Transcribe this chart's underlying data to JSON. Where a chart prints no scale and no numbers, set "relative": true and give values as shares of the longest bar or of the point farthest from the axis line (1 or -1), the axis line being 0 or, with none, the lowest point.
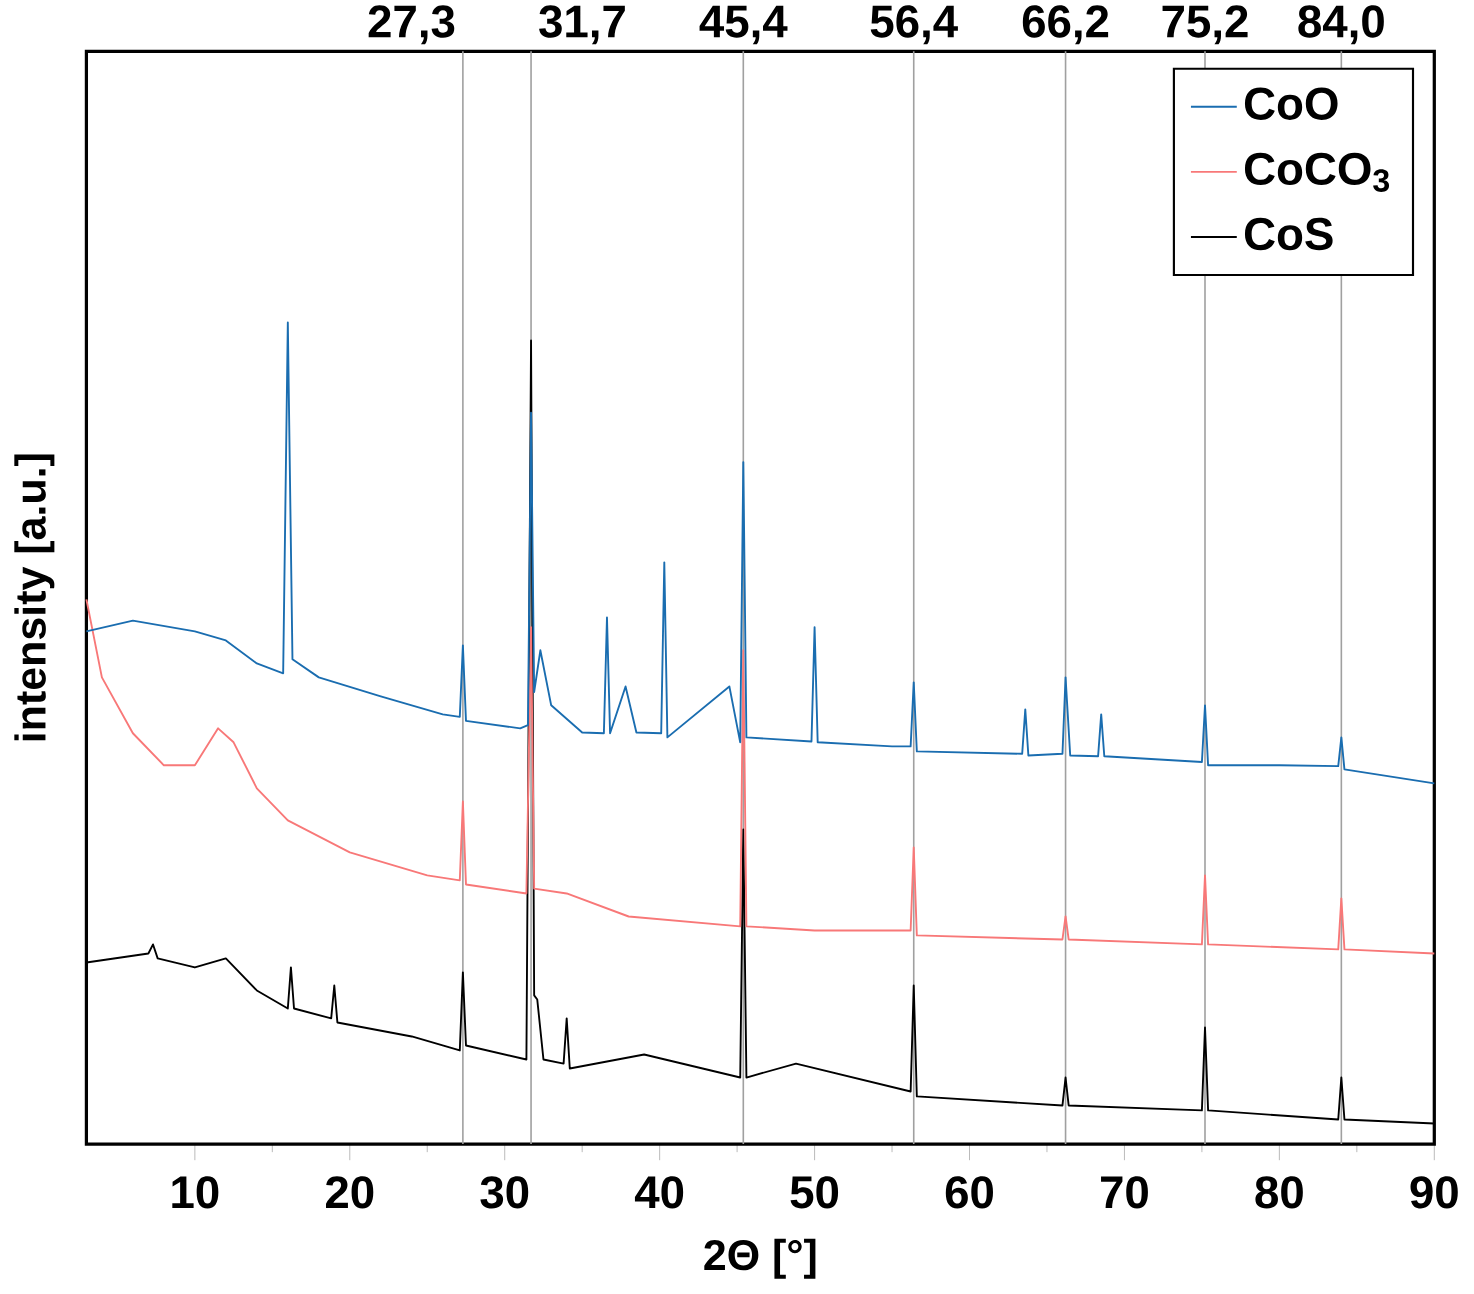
{
  "chart_data": {
    "type": "line",
    "relative": true,
    "xlabel": "2Θ [°]",
    "ylabel": "intensity [a.u.]",
    "xlim": [
      3,
      90
    ],
    "xticks": [
      10,
      20,
      30,
      40,
      50,
      60,
      70,
      80,
      90
    ],
    "legend": "top right",
    "series": [
      {
        "name": "CoO",
        "color": "#1a6db0",
        "x": [
          3,
          6,
          10,
          12,
          14,
          15.7,
          16,
          16.3,
          18,
          22,
          26,
          27.1,
          27.3,
          27.5,
          31,
          31.5,
          31.7,
          31.9,
          32.3,
          33,
          35,
          36.4,
          36.6,
          36.8,
          37.8,
          38.5,
          40.1,
          40.3,
          40.5,
          44.5,
          45.2,
          45.4,
          45.6,
          49.8,
          50,
          50.2,
          55,
          56.2,
          56.4,
          56.6,
          63.4,
          63.6,
          63.8,
          66.0,
          66.2,
          66.5,
          68.3,
          68.5,
          68.7,
          75.0,
          75.2,
          75.4,
          80,
          83.8,
          84,
          84.2,
          90
        ],
        "values": [
          0.624,
          0.637,
          0.624,
          0.613,
          0.585,
          0.573,
          1.0,
          0.59,
          0.568,
          0.545,
          0.523,
          0.52,
          0.607,
          0.515,
          0.506,
          0.51,
          0.89,
          0.55,
          0.601,
          0.534,
          0.501,
          0.5,
          0.641,
          0.5,
          0.557,
          0.501,
          0.5,
          0.708,
          0.495,
          0.557,
          0.489,
          0.83,
          0.495,
          0.49,
          0.629,
          0.489,
          0.484,
          0.484,
          0.562,
          0.478,
          0.475,
          0.529,
          0.473,
          0.475,
          0.568,
          0.473,
          0.472,
          0.523,
          0.472,
          0.465,
          0.534,
          0.461,
          0.461,
          0.46,
          0.495,
          0.456,
          0.439
        ]
      },
      {
        "name": "CoCO$_{3}$",
        "color": "#f87878",
        "x": [
          3,
          4,
          6,
          8,
          10,
          11.5,
          12.5,
          14,
          16,
          20,
          25,
          27.1,
          27.3,
          27.5,
          31.4,
          31.7,
          31.9,
          34,
          38,
          45.2,
          45.4,
          45.6,
          50,
          56.2,
          56.4,
          56.6,
          66,
          66.2,
          66.4,
          75,
          75.2,
          75.4,
          83.8,
          84,
          84.2,
          90
        ],
        "values": [
          0.663,
          0.568,
          0.5,
          0.461,
          0.461,
          0.506,
          0.489,
          0.433,
          0.394,
          0.355,
          0.327,
          0.321,
          0.417,
          0.316,
          0.305,
          0.629,
          0.311,
          0.305,
          0.277,
          0.265,
          0.601,
          0.265,
          0.26,
          0.26,
          0.361,
          0.254,
          0.249,
          0.277,
          0.249,
          0.243,
          0.327,
          0.243,
          0.237,
          0.299,
          0.237,
          0.232
        ]
      },
      {
        "name": "CoS",
        "color": "#000000",
        "x": [
          3,
          7,
          7.3,
          7.6,
          10,
          12,
          14,
          16,
          16.2,
          16.4,
          18.8,
          19,
          19.2,
          24,
          27.1,
          27.3,
          27.5,
          31.4,
          31.7,
          31.9,
          32.1,
          32.5,
          33.8,
          34,
          34.2,
          39,
          45.2,
          45.4,
          45.6,
          48.8,
          56.2,
          56.4,
          56.6,
          66,
          66.2,
          66.4,
          75,
          75.2,
          75.4,
          83.8,
          84,
          84.2,
          90
        ],
        "values": [
          0.221,
          0.232,
          0.243,
          0.226,
          0.215,
          0.226,
          0.187,
          0.165,
          0.215,
          0.165,
          0.153,
          0.193,
          0.148,
          0.131,
          0.114,
          0.209,
          0.12,
          0.103,
          0.978,
          0.181,
          0.176,
          0.103,
          0.098,
          0.153,
          0.092,
          0.109,
          0.081,
          0.383,
          0.081,
          0.098,
          0.064,
          0.193,
          0.058,
          0.047,
          0.081,
          0.047,
          0.041,
          0.142,
          0.041,
          0.03,
          0.081,
          0.03,
          0.025
        ]
      }
    ],
    "ref_lines": [
      {
        "axis": "x",
        "value": 27.3,
        "label": "27,3",
        "color": "#a0a0a0"
      },
      {
        "axis": "x",
        "value": 31.7,
        "label": "31,7",
        "color": "#a0a0a0"
      },
      {
        "axis": "x",
        "value": 45.4,
        "label": "45,4",
        "color": "#a0a0a0"
      },
      {
        "axis": "x",
        "value": 56.4,
        "label": "56,4",
        "color": "#a0a0a0"
      },
      {
        "axis": "x",
        "value": 66.2,
        "label": "66,2",
        "color": "#a0a0a0"
      },
      {
        "axis": "x",
        "value": 75.2,
        "label": "75,2",
        "color": "#a0a0a0"
      },
      {
        "axis": "x",
        "value": 84.0,
        "label": "84,0",
        "color": "#a0a0a0"
      }
    ]
  }
}
